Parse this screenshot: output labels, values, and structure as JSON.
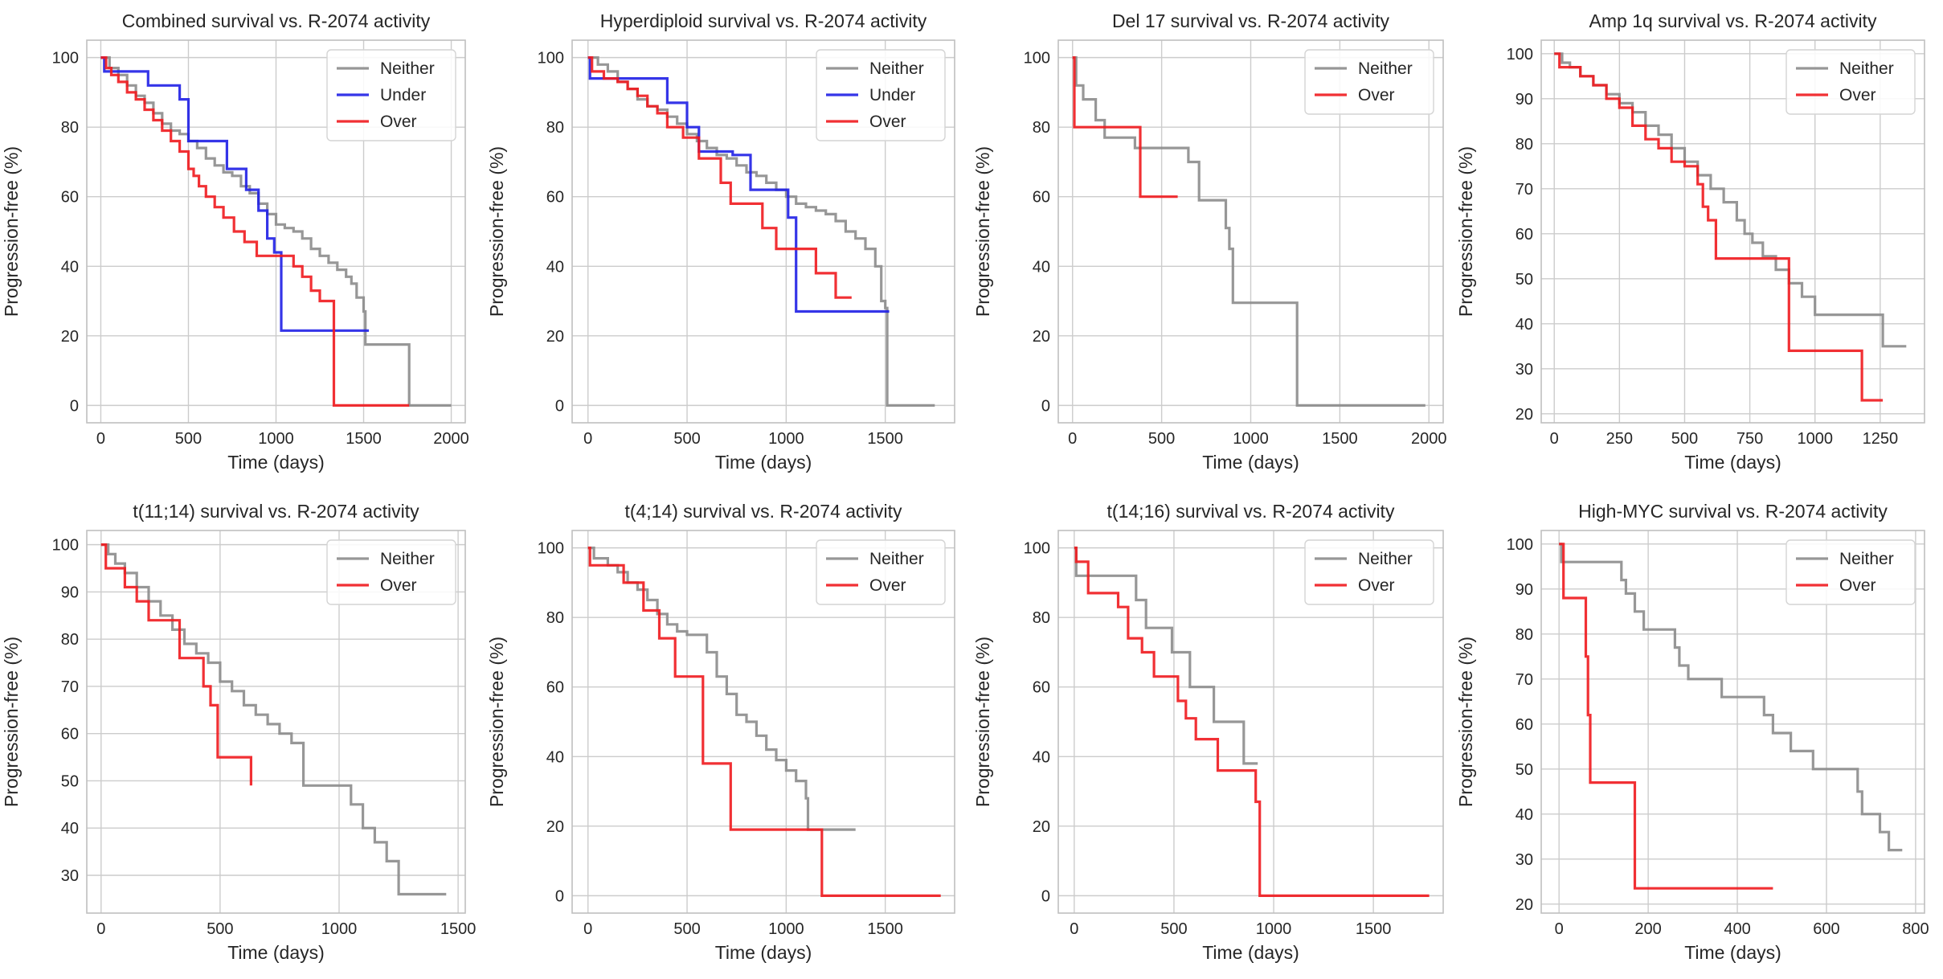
{
  "colors": {
    "Neither": "#8c8c8c",
    "Under": "#1f1fe6",
    "Over": "#f0191e",
    "grid": "#cccccc",
    "frame": "#bfbfbf"
  },
  "chart_data": [
    {
      "type": "line",
      "title": "Combined survival vs. R-2074 activity",
      "xlabel": "Time (days)",
      "ylabel": "Progression-free (%)",
      "xlim": [
        -80,
        2080
      ],
      "ylim": [
        -5,
        105
      ],
      "xticks": [
        0,
        500,
        1000,
        1500,
        2000
      ],
      "yticks": [
        0,
        20,
        40,
        60,
        80,
        100
      ],
      "grid": true,
      "legend": "top-right",
      "series": [
        {
          "name": "Neither",
          "x": [
            0,
            50,
            100,
            150,
            200,
            250,
            300,
            350,
            400,
            450,
            500,
            550,
            600,
            650,
            700,
            750,
            800,
            850,
            900,
            950,
            1000,
            1050,
            1100,
            1150,
            1200,
            1250,
            1300,
            1350,
            1400,
            1430,
            1460,
            1500,
            1510,
            1760,
            1760,
            2000
          ],
          "y": [
            100,
            97,
            95,
            92,
            89,
            87,
            84,
            81,
            79,
            78,
            76,
            74,
            71,
            69,
            67,
            66,
            63,
            61,
            58,
            55,
            52,
            51,
            50,
            48,
            45,
            43,
            41,
            39,
            37,
            35,
            31,
            27,
            17.5,
            17.5,
            0,
            0
          ]
        },
        {
          "name": "Under",
          "x": [
            0,
            20,
            270,
            450,
            500,
            720,
            830,
            900,
            950,
            990,
            1030,
            1530
          ],
          "y": [
            100,
            96,
            92,
            88,
            76,
            68,
            62,
            56,
            48,
            44,
            21.5,
            21.5
          ]
        },
        {
          "name": "Over",
          "x": [
            0,
            30,
            60,
            100,
            150,
            200,
            250,
            300,
            350,
            400,
            450,
            500,
            530,
            560,
            600,
            650,
            700,
            760,
            820,
            890,
            1000,
            1100,
            1150,
            1200,
            1250,
            1330,
            1760
          ],
          "y": [
            100,
            97,
            95,
            93,
            90,
            88,
            85,
            82,
            79,
            76,
            73,
            68,
            66,
            63,
            60,
            57,
            54,
            50,
            47,
            43,
            43,
            40,
            37,
            33,
            30,
            0,
            0
          ]
        }
      ]
    },
    {
      "type": "line",
      "title": "Hyperdiploid survival vs. R-2074 activity",
      "xlabel": "Time (days)",
      "ylabel": "Progression-free (%)",
      "xlim": [
        -80,
        1850
      ],
      "ylim": [
        -5,
        105
      ],
      "xticks": [
        0,
        500,
        1000,
        1500
      ],
      "yticks": [
        0,
        20,
        40,
        60,
        80,
        100
      ],
      "grid": true,
      "legend": "top-right",
      "series": [
        {
          "name": "Neither",
          "x": [
            0,
            50,
            100,
            150,
            200,
            250,
            300,
            350,
            400,
            450,
            500,
            550,
            600,
            650,
            700,
            750,
            800,
            850,
            900,
            950,
            1000,
            1050,
            1100,
            1150,
            1200,
            1250,
            1300,
            1350,
            1400,
            1450,
            1480,
            1500,
            1510,
            1750
          ],
          "y": [
            100,
            98,
            96,
            93,
            91,
            88,
            86,
            85,
            83,
            81,
            78,
            76,
            74,
            72,
            71,
            69,
            67,
            66,
            64,
            62,
            60,
            58,
            57,
            56,
            55,
            53,
            50,
            48,
            45,
            40,
            30,
            28,
            0,
            0
          ]
        },
        {
          "name": "Under",
          "x": [
            0,
            10,
            300,
            400,
            500,
            560,
            730,
            820,
            970,
            1010,
            1050,
            1520
          ],
          "y": [
            100,
            94,
            94,
            87,
            80,
            73,
            72,
            62,
            62,
            54,
            27,
            27
          ]
        },
        {
          "name": "Over",
          "x": [
            0,
            20,
            80,
            150,
            200,
            250,
            300,
            350,
            400,
            480,
            560,
            600,
            670,
            720,
            800,
            880,
            950,
            1000,
            1050,
            1150,
            1250,
            1330
          ],
          "y": [
            100,
            96,
            94,
            93,
            91,
            89,
            86,
            84,
            80,
            77,
            71,
            71,
            64,
            58,
            58,
            51,
            45,
            45,
            45,
            38,
            31,
            31
          ]
        }
      ]
    },
    {
      "type": "line",
      "title": "Del 17 survival vs. R-2074 activity",
      "xlabel": "Time (days)",
      "ylabel": "Progression-free (%)",
      "xlim": [
        -80,
        2080
      ],
      "ylim": [
        -5,
        105
      ],
      "xticks": [
        0,
        500,
        1000,
        1500,
        2000
      ],
      "yticks": [
        0,
        20,
        40,
        60,
        80,
        100
      ],
      "grid": true,
      "legend": "top-right",
      "series": [
        {
          "name": "Neither",
          "x": [
            0,
            20,
            60,
            130,
            180,
            350,
            580,
            650,
            710,
            860,
            880,
            900,
            1260,
            1980
          ],
          "y": [
            100,
            92,
            88,
            82,
            77,
            74,
            74,
            70,
            59,
            51,
            45,
            29.5,
            0,
            0
          ]
        },
        {
          "name": "Over",
          "x": [
            0,
            10,
            380,
            380,
            590
          ],
          "y": [
            100,
            80,
            80,
            60,
            60
          ]
        }
      ]
    },
    {
      "type": "line",
      "title": "Amp 1q survival vs. R-2074 activity",
      "xlabel": "Time (days)",
      "ylabel": "Progression-free (%)",
      "xlim": [
        -50,
        1420
      ],
      "ylim": [
        18,
        103
      ],
      "xticks": [
        0,
        250,
        500,
        750,
        1000,
        1250
      ],
      "yticks": [
        20,
        30,
        40,
        50,
        60,
        70,
        80,
        90,
        100
      ],
      "grid": true,
      "legend": "top-right",
      "series": [
        {
          "name": "Neither",
          "x": [
            0,
            30,
            60,
            100,
            150,
            200,
            250,
            300,
            350,
            400,
            450,
            500,
            550,
            600,
            650,
            700,
            730,
            760,
            800,
            850,
            900,
            950,
            1000,
            1050,
            1250,
            1260,
            1350
          ],
          "y": [
            100,
            98,
            97,
            95,
            93,
            91,
            89,
            87,
            84,
            82,
            79,
            76,
            73,
            70,
            67,
            63,
            60,
            58,
            55,
            52,
            49,
            46,
            42,
            42,
            42,
            35,
            35
          ]
        },
        {
          "name": "Over",
          "x": [
            0,
            20,
            100,
            150,
            200,
            250,
            300,
            350,
            400,
            450,
            500,
            550,
            570,
            590,
            620,
            900,
            900,
            1180,
            1180,
            1260
          ],
          "y": [
            100,
            97,
            95,
            93,
            90,
            88,
            84,
            81,
            79,
            76,
            75,
            71,
            66,
            63,
            54.5,
            45.5,
            34,
            34,
            23,
            23
          ]
        }
      ]
    },
    {
      "type": "line",
      "title": "t(11;14) survival vs. R-2074 activity",
      "xlabel": "Time (days)",
      "ylabel": "Progression-free (%)",
      "xlim": [
        -60,
        1530
      ],
      "ylim": [
        22,
        103
      ],
      "xticks": [
        0,
        500,
        1000,
        1500
      ],
      "yticks": [
        30,
        40,
        50,
        60,
        70,
        80,
        90,
        100
      ],
      "grid": true,
      "legend": "top-right",
      "series": [
        {
          "name": "Neither",
          "x": [
            0,
            30,
            60,
            100,
            150,
            200,
            250,
            300,
            350,
            400,
            450,
            500,
            550,
            600,
            650,
            700,
            750,
            800,
            830,
            850,
            1000,
            1050,
            1100,
            1150,
            1200,
            1250,
            1450
          ],
          "y": [
            100,
            98,
            96,
            94,
            91,
            88,
            85,
            82,
            79,
            77,
            75,
            71,
            69,
            66,
            64,
            62,
            60,
            58,
            58,
            49,
            49,
            45,
            40,
            37,
            33,
            26,
            26
          ]
        },
        {
          "name": "Over",
          "x": [
            0,
            20,
            100,
            150,
            200,
            250,
            330,
            400,
            430,
            460,
            490,
            550,
            630
          ],
          "y": [
            100,
            95,
            91,
            88,
            84,
            84,
            76,
            76,
            70,
            66,
            55,
            55,
            49
          ]
        }
      ]
    },
    {
      "type": "line",
      "title": "t(4;14) survival vs. R-2074 activity",
      "xlabel": "Time (days)",
      "ylabel": "Progression-free (%)",
      "xlim": [
        -80,
        1850
      ],
      "ylim": [
        -5,
        105
      ],
      "xticks": [
        0,
        500,
        1000,
        1500
      ],
      "yticks": [
        0,
        20,
        40,
        60,
        80,
        100
      ],
      "grid": true,
      "legend": "top-right",
      "series": [
        {
          "name": "Neither",
          "x": [
            0,
            30,
            100,
            150,
            200,
            250,
            300,
            350,
            400,
            450,
            500,
            560,
            600,
            650,
            700,
            750,
            800,
            850,
            900,
            950,
            1000,
            1050,
            1100,
            1110,
            1350
          ],
          "y": [
            100,
            97,
            95,
            93,
            90,
            88,
            85,
            81,
            78,
            76,
            75,
            75,
            70,
            63,
            58,
            52,
            50,
            46,
            42,
            39,
            36,
            33,
            28,
            19,
            19
          ]
        },
        {
          "name": "Over",
          "x": [
            0,
            10,
            90,
            180,
            280,
            360,
            440,
            580,
            720,
            1180,
            1180,
            1780
          ],
          "y": [
            100,
            95,
            95,
            90,
            82,
            74,
            63,
            38,
            19,
            19,
            0,
            0
          ]
        }
      ]
    },
    {
      "type": "line",
      "title": "t(14;16) survival vs. R-2074 activity",
      "xlabel": "Time (days)",
      "ylabel": "Progression-free (%)",
      "xlim": [
        -80,
        1850
      ],
      "ylim": [
        -5,
        105
      ],
      "xticks": [
        0,
        500,
        1000,
        1500
      ],
      "yticks": [
        0,
        20,
        40,
        60,
        80,
        100
      ],
      "grid": true,
      "legend": "top-right",
      "series": [
        {
          "name": "Neither",
          "x": [
            0,
            10,
            90,
            180,
            310,
            360,
            490,
            580,
            700,
            850,
            920
          ],
          "y": [
            100,
            92,
            92,
            92,
            85,
            77,
            70,
            60,
            50,
            38,
            38
          ]
        },
        {
          "name": "Over",
          "x": [
            0,
            10,
            70,
            160,
            220,
            270,
            340,
            400,
            520,
            560,
            610,
            720,
            910,
            930,
            1780
          ],
          "y": [
            100,
            96,
            87,
            87,
            83,
            74,
            70,
            63,
            56,
            51,
            45,
            36,
            27,
            0,
            0
          ]
        }
      ]
    },
    {
      "type": "line",
      "title": "High-MYC survival vs. R-2074 activity",
      "xlabel": "Time (days)",
      "ylabel": "Progression-free (%)",
      "xlim": [
        -40,
        820
      ],
      "ylim": [
        18,
        103
      ],
      "xticks": [
        0,
        200,
        400,
        600,
        800
      ],
      "yticks": [
        20,
        30,
        40,
        50,
        60,
        70,
        80,
        90,
        100
      ],
      "grid": true,
      "legend": "top-right",
      "series": [
        {
          "name": "Neither",
          "x": [
            0,
            5,
            130,
            140,
            150,
            170,
            190,
            250,
            260,
            270,
            290,
            365,
            460,
            480,
            520,
            570,
            670,
            680,
            720,
            740,
            770
          ],
          "y": [
            100,
            96,
            96,
            92,
            89,
            85,
            81,
            81,
            77,
            73,
            70,
            66,
            62,
            58,
            54,
            50,
            45,
            40,
            36,
            32,
            32
          ]
        },
        {
          "name": "Over",
          "x": [
            0,
            10,
            55,
            60,
            65,
            70,
            170,
            480
          ],
          "y": [
            100,
            88,
            88,
            75,
            62,
            47,
            23.5,
            23.5
          ]
        }
      ]
    }
  ]
}
